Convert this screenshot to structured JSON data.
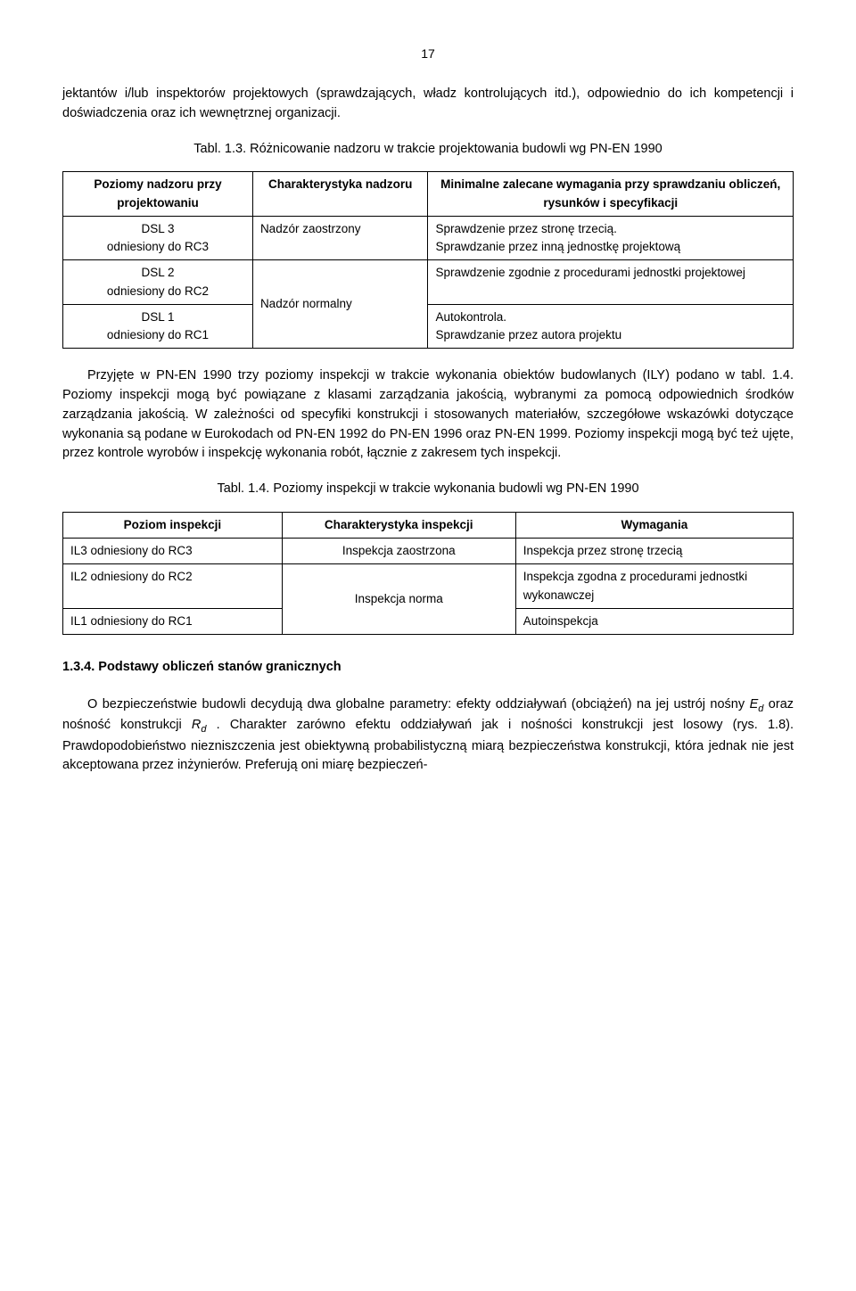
{
  "page_number": "17",
  "intro_para": "jektantów i/lub inspektorów projektowych (sprawdzających, władz kontrolujących itd.), odpowiednio do ich kompetencji i doświadczenia oraz ich wewnętrznej organizacji.",
  "table1_caption": "Tabl. 1.3. Różnicowanie nadzoru w trakcie projektowania budowli wg PN-EN 1990",
  "table1": {
    "headers": {
      "c1": "Poziomy nadzoru przy projektowaniu",
      "c2": "Charakterystyka nadzoru",
      "c3": "Minimalne zalecane wymagania przy sprawdzaniu obliczeń, rysunków i specyfikacji"
    },
    "rows": [
      {
        "c1": "DSL 3\nodniesiony do RC3",
        "c2": "Nadzór zaostrzony",
        "c3": "Sprawdzenie przez stronę trzecią.\nSprawdzanie przez inną jednostkę projektową"
      },
      {
        "c1": "DSL 2\nodniesiony do RC2",
        "c2": "Nadzór normalny",
        "c3": "Sprawdzenie zgodnie z procedurami jednostki projektowej"
      },
      {
        "c1": "DSL 1\nodniesiony do RC1",
        "c2": "",
        "c3": "Autokontrola.\nSprawdzanie przez autora projektu"
      }
    ]
  },
  "mid_para": "Przyjęte w PN-EN 1990 trzy poziomy inspekcji w trakcie wykonania obiektów budowlanych (ILY) podano w tabl. 1.4. Poziomy inspekcji mogą być powiązane z klasami zarządzania jakością, wybranymi za pomocą odpowiednich środków zarządzania jakością. W zależności od specyfiki konstrukcji i stosowanych materiałów, szczegółowe wskazówki dotyczące wykonania są podane w Eurokodach od PN-EN 1992 do PN-EN 1996 oraz PN-EN 1999. Poziomy inspekcji mogą być też ujęte, przez kontrole wyrobów i inspekcję wykonania robót, łącznie z zakresem tych inspekcji.",
  "table2_caption": "Tabl. 1.4. Poziomy inspekcji w trakcie wykonania budowli wg PN-EN 1990",
  "table2": {
    "headers": {
      "c1": "Poziom inspekcji",
      "c2": "Charakterystyka inspekcji",
      "c3": "Wymagania"
    },
    "rows": [
      {
        "c1": "IL3 odniesiony do RC3",
        "c2": "Inspekcja zaostrzona",
        "c3": "Inspekcja przez stronę trzecią"
      },
      {
        "c1": "IL2 odniesiony do RC2",
        "c2": "Inspekcja norma",
        "c3": "Inspekcja zgodna z procedurami jednostki wykonawczej"
      },
      {
        "c1": "IL1 odniesiony do RC1",
        "c2": "",
        "c3": "Autoinspekcja"
      }
    ]
  },
  "section_title": "1.3.4. Podstawy obliczeń stanów granicznych",
  "closing": {
    "pre_Ed": "O bezpieczeństwie budowli decydują dwa globalne parametry: efekty oddziaływań (obciążeń) na jej ustrój nośny ",
    "Ed_base": "E",
    "Ed_sub": "d",
    "between": " oraz nośność konstrukcji ",
    "Rd_base": "R",
    "Rd_sub": "d",
    "post_Rd": ". Charakter zarówno efektu oddziaływań jak i nośności konstrukcji jest losowy (rys. 1.8). Prawdopodobieństwo niezniszczenia jest obiektywną probabilistyczną miarą bezpieczeństwa konstrukcji, która jednak nie jest akceptowana przez inżynierów. Preferują oni miarę bezpieczeń-"
  }
}
